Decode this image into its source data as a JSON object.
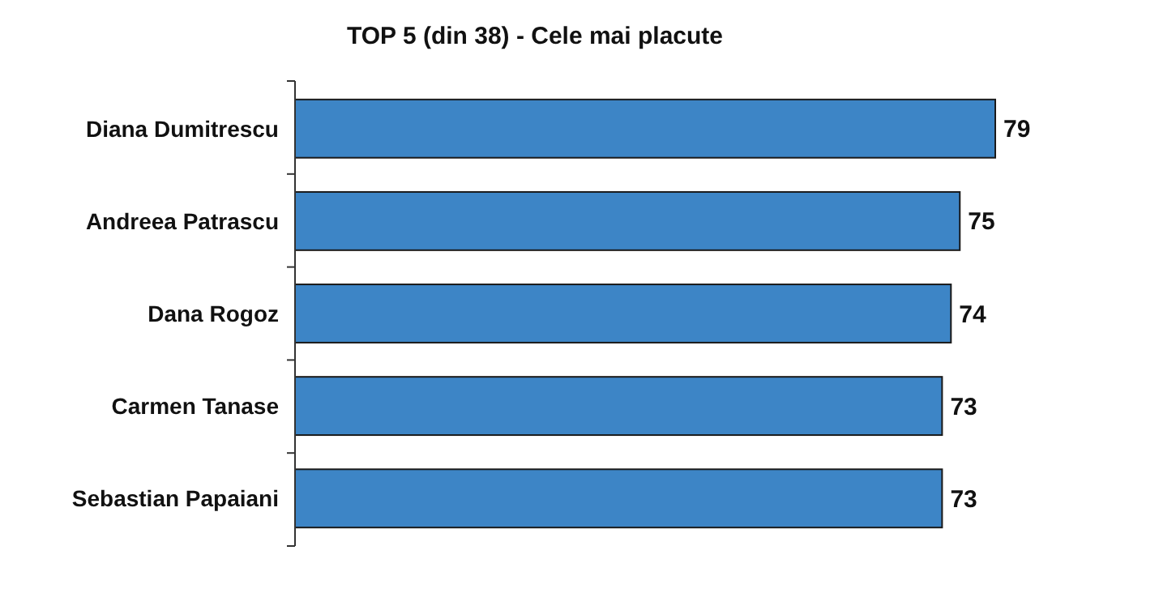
{
  "chart_data": {
    "type": "bar",
    "orientation": "horizontal",
    "title": "TOP 5 (din 38) - Cele mai placute",
    "categories": [
      "Diana Dumitrescu",
      "Andreea Patrascu",
      "Dana Rogoz",
      "Carmen Tanase",
      "Sebastian Papaiani"
    ],
    "values": [
      79,
      75,
      74,
      73,
      73
    ],
    "color": "#3d85c6",
    "data_labels": true
  }
}
